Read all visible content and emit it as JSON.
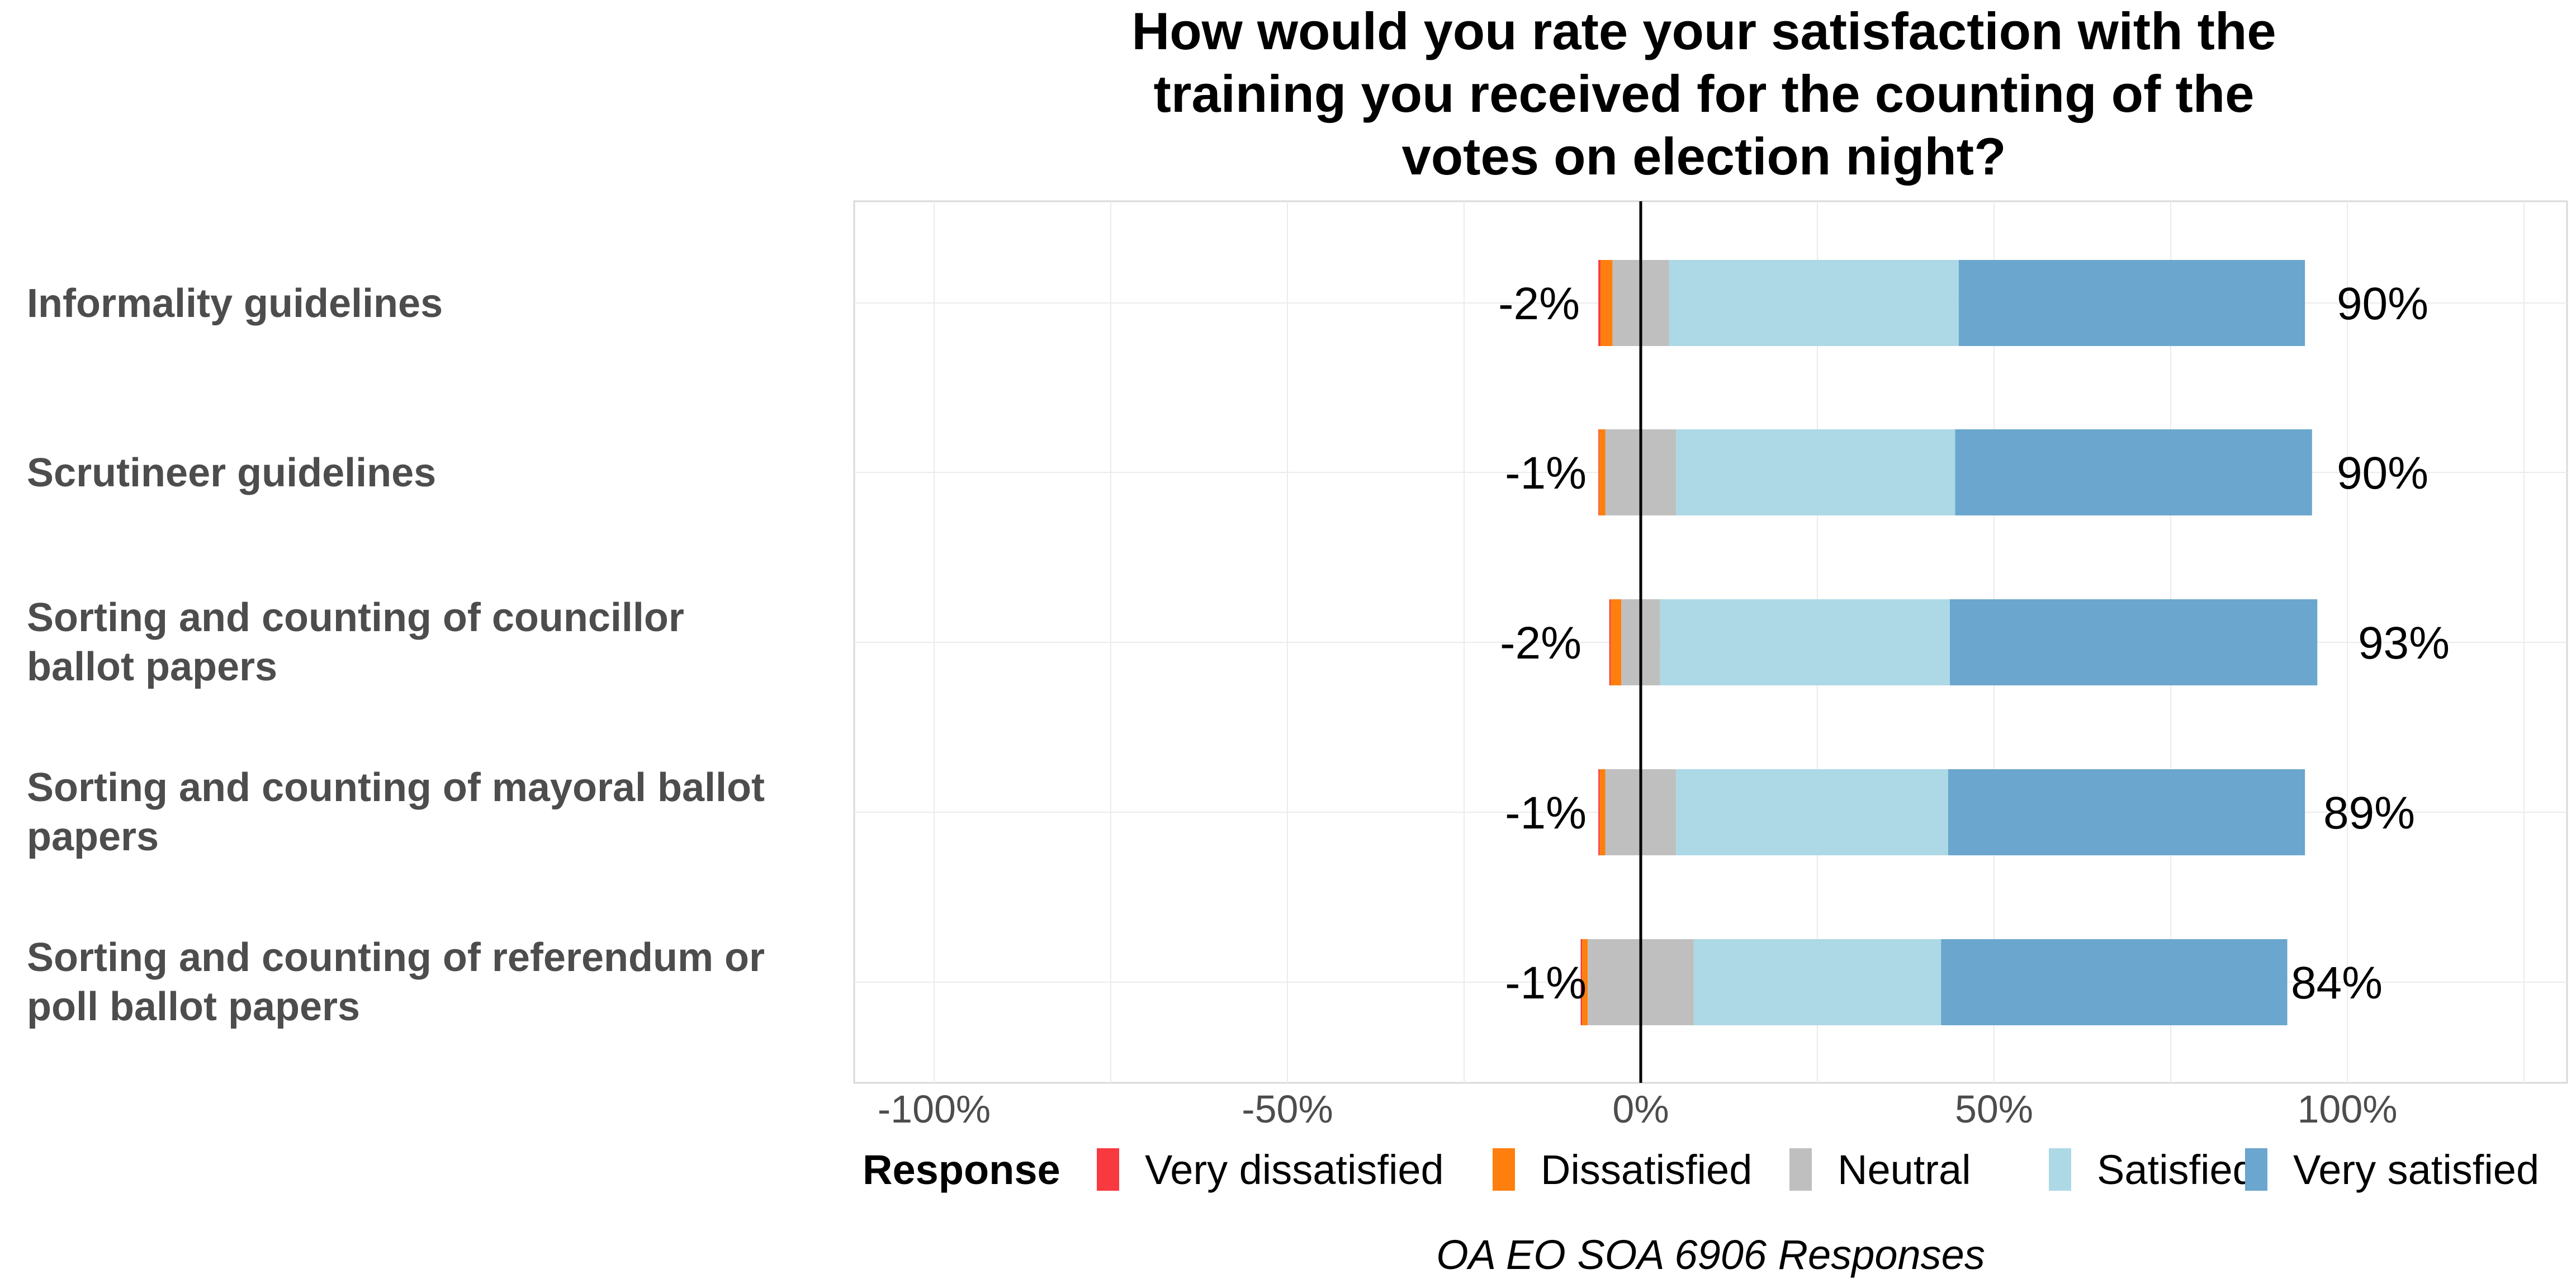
{
  "chart_data": {
    "type": "bar",
    "orientation": "horizontal-diverging",
    "title": "How would you rate your satisfaction with the training you received for the counting of the votes on election night?",
    "title_lines": [
      "How would you rate your satisfaction with the",
      "training you received for the counting of the",
      "votes on election night?"
    ],
    "categories": [
      "Informality guidelines",
      "Scrutineer guidelines",
      "Sorting and counting of councillor ballot papers",
      "Sorting and counting of mayoral ballot papers",
      "Sorting and counting of referendum or poll ballot papers"
    ],
    "category_lines": [
      [
        "Informality guidelines"
      ],
      [
        "Scrutineer guidelines"
      ],
      [
        "Sorting and counting of councillor",
        "ballot papers"
      ],
      [
        "Sorting and counting of mayoral ballot",
        "papers"
      ],
      [
        "Sorting and counting of referendum or",
        "poll ballot papers"
      ]
    ],
    "series": [
      {
        "name": "Very dissatisfied",
        "color": "#f8393f",
        "values": [
          0.3,
          0.1,
          0.2,
          0.2,
          0.2
        ]
      },
      {
        "name": "Dissatisfied",
        "color": "#ff7f0e",
        "values": [
          1.7,
          0.9,
          1.5,
          0.8,
          0.8
        ]
      },
      {
        "name": "Neutral",
        "color": "#bfbfbf",
        "values": [
          8,
          10,
          5.5,
          10,
          15
        ]
      },
      {
        "name": "Satisfied",
        "color": "#add8e6",
        "values": [
          41,
          39.5,
          41,
          38.5,
          35
        ]
      },
      {
        "name": "Very satisfied",
        "color": "#6aa6cd",
        "values": [
          49,
          50.5,
          52,
          50.5,
          49
        ]
      }
    ],
    "negative_labels": [
      "-2%",
      "-1%",
      "-2%",
      "-1%",
      "-1%"
    ],
    "positive_labels": [
      "90%",
      "90%",
      "93%",
      "89%",
      "84%"
    ],
    "xlim": [
      -111,
      131
    ],
    "x_ticks": [
      -100,
      -50,
      0,
      50,
      100
    ],
    "x_tick_labels": [
      "-100%",
      "-50%",
      "0%",
      "50%",
      "100%"
    ],
    "legend_title": "Response",
    "legend_position": "bottom",
    "caption": "OA EO SOA 6906 Responses",
    "grid": true
  }
}
